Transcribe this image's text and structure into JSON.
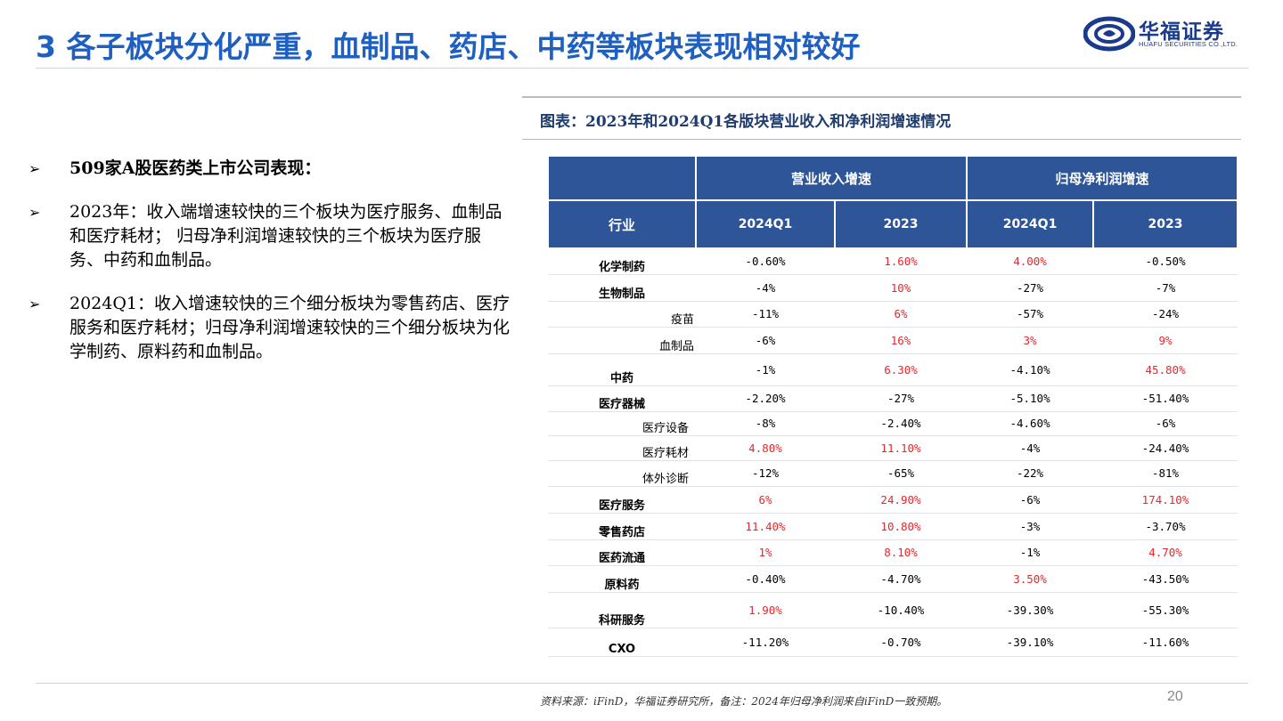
{
  "header": {
    "title": "3 各子板块分化严重，血制品、药店、中药等板块表现相对较好",
    "logo_cn": "华福证券",
    "logo_en": "HUAFU SECURITIES CO.,LTD."
  },
  "bullets": [
    {
      "mark": "➢",
      "text": "509家A股医药类上市公司表现："
    },
    {
      "mark": "➢",
      "text": "2023年：收入端增速较快的三个板块为医疗服务、血制品和医疗耗材； 归母净利润增速较快的三个板块为医疗服务、中药和血制品。"
    },
    {
      "mark": "➢",
      "text": "2024Q1：收入增速较快的三个细分板块为零售药店、医疗服务和医疗耗材；归母净利润增速较快的三个细分板块为化学制药、原料药和血制品。"
    }
  ],
  "caption": "图表：2023年和2024Q1各版块营业收入和净利润增速情况",
  "table": {
    "group_headers": [
      "营业收入增速",
      "归母净利润增速"
    ],
    "columns": [
      "行业",
      "2024Q1",
      "2023",
      "2024Q1",
      "2023"
    ],
    "rows": [
      {
        "name": "化学制药",
        "level": 0,
        "vals": [
          "-0.60%",
          "1.60%",
          "4.00%",
          "-0.50%"
        ],
        "red": [
          false,
          true,
          true,
          false
        ]
      },
      {
        "name": "生物制品",
        "level": 0,
        "vals": [
          "-4%",
          "10%",
          "-27%",
          "-7%"
        ],
        "red": [
          false,
          true,
          false,
          false
        ]
      },
      {
        "name": "疫苗",
        "level": 1,
        "vals": [
          "-11%",
          "6%",
          "-57%",
          "-24%"
        ],
        "red": [
          false,
          true,
          false,
          false
        ]
      },
      {
        "name": "血制品",
        "level": 1,
        "vals": [
          "-6%",
          "16%",
          "3%",
          "9%"
        ],
        "red": [
          false,
          true,
          true,
          true
        ]
      },
      {
        "name": "中药",
        "level": 0,
        "vals": [
          "-1%",
          "6.30%",
          "-4.10%",
          "45.80%"
        ],
        "red": [
          false,
          true,
          false,
          true
        ]
      },
      {
        "name": "医疗器械",
        "level": 0,
        "vals": [
          "-2.20%",
          "-27%",
          "-5.10%",
          "-51.40%"
        ],
        "red": [
          false,
          false,
          false,
          false
        ]
      },
      {
        "name": "医疗设备",
        "level": 2,
        "vals": [
          "-8%",
          "-2.40%",
          "-4.60%",
          "-6%"
        ],
        "red": [
          false,
          false,
          false,
          false
        ]
      },
      {
        "name": "医疗耗材",
        "level": 2,
        "vals": [
          "4.80%",
          "11.10%",
          "-4%",
          "-24.40%"
        ],
        "red": [
          true,
          true,
          false,
          false
        ]
      },
      {
        "name": "体外诊断",
        "level": 2,
        "vals": [
          "-12%",
          "-65%",
          "-22%",
          "-81%"
        ],
        "red": [
          false,
          false,
          false,
          false
        ]
      },
      {
        "name": "医疗服务",
        "level": 0,
        "vals": [
          "6%",
          "24.90%",
          "-6%",
          "174.10%"
        ],
        "red": [
          true,
          true,
          false,
          true
        ]
      },
      {
        "name": "零售药店",
        "level": 0,
        "vals": [
          "11.40%",
          "10.80%",
          "-3%",
          "-3.70%"
        ],
        "red": [
          true,
          true,
          false,
          false
        ]
      },
      {
        "name": "医药流通",
        "level": 0,
        "vals": [
          "1%",
          "8.10%",
          "-1%",
          "4.70%"
        ],
        "red": [
          true,
          true,
          false,
          true
        ]
      },
      {
        "name": "原料药",
        "level": 0,
        "vals": [
          "-0.40%",
          "-4.70%",
          "3.50%",
          "-43.50%"
        ],
        "red": [
          false,
          false,
          true,
          false
        ]
      },
      {
        "name": "科研服务",
        "level": 0,
        "vals": [
          "1.90%",
          "-10.40%",
          "-39.30%",
          "-55.30%"
        ],
        "red": [
          true,
          false,
          false,
          false
        ]
      },
      {
        "name": "CXO",
        "level": 0,
        "vals": [
          "-11.20%",
          "-0.70%",
          "-39.10%",
          "-11.60%"
        ],
        "red": [
          false,
          false,
          false,
          false
        ]
      }
    ]
  },
  "footer": {
    "source": "资料来源：iFinD，华福证券研究所，备注：2024年归母净利润来自iFinD一致预期。",
    "page": "20"
  },
  "colors": {
    "title": "#1f5fbf",
    "header_bg": "#2d5597",
    "positive_red": "#e8262b"
  }
}
